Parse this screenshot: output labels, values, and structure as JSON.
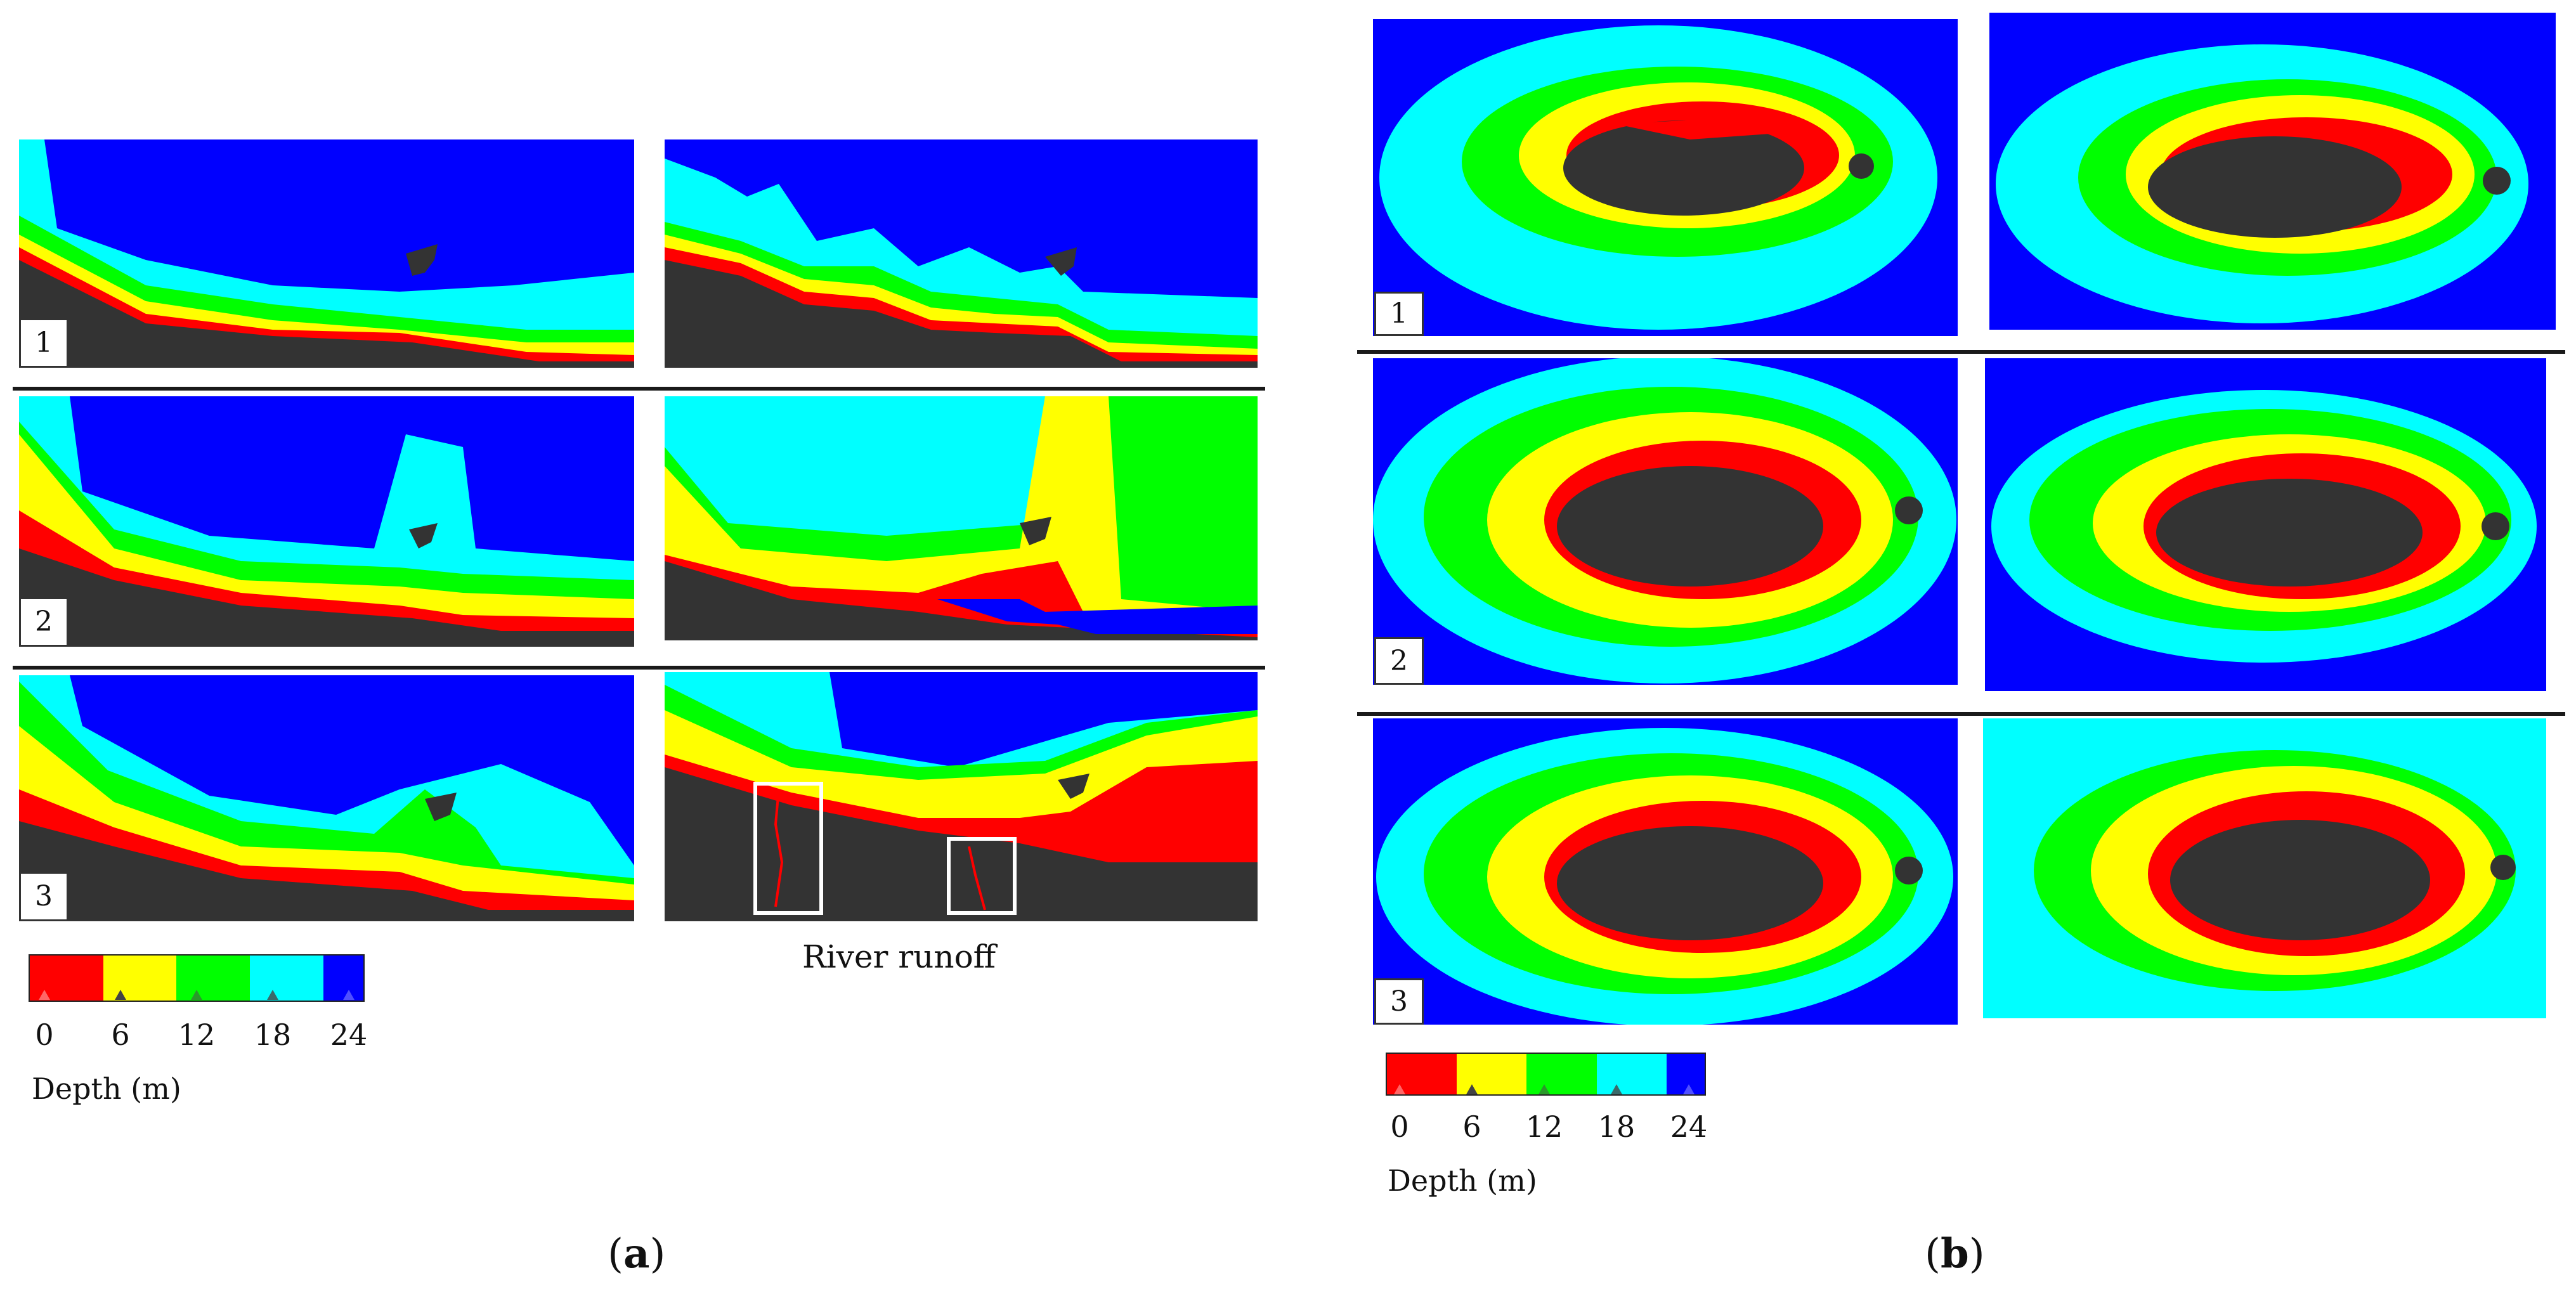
{
  "colors": {
    "land": "#333333",
    "depth_0_6": "#ff0000",
    "depth_6_12": "#ffff00",
    "depth_12_18": "#00ff00",
    "depth_18_24": "#00ffff",
    "depth_24_plus": "#0000ff"
  },
  "panel_a": {
    "label_open": "(",
    "label_letter": "a",
    "label_close": ")",
    "rows": [
      "1",
      "2",
      "3"
    ],
    "annotation": "River runoff"
  },
  "panel_b": {
    "label_open": "(",
    "label_letter": "b",
    "label_close": ")",
    "rows": [
      "1",
      "2",
      "3"
    ]
  },
  "legend": {
    "title": "Depth (m)",
    "ticks": [
      "0",
      "6",
      "12",
      "18",
      "24"
    ],
    "icon": "triangle-marker-icon"
  }
}
